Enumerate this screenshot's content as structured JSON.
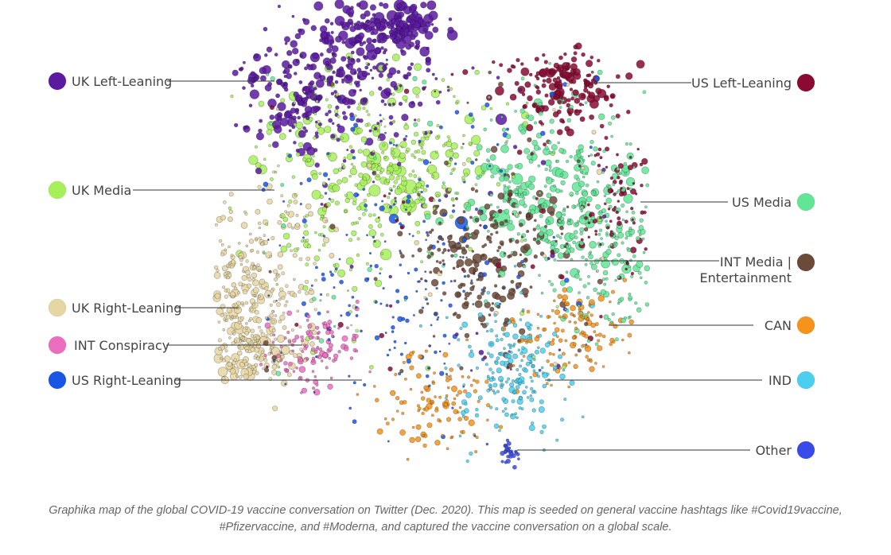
{
  "caption": {
    "line1": "Graphika map of the global COVID-19 vaccine conversation on Twitter (Dec. 2020). This map is seeded on general vaccine hashtags like #Covid19vaccine,",
    "line2": "#Pfizervaccine, and #Moderna, and captured the vaccine conversation on a global scale."
  },
  "clusters": [
    {
      "id": "uk-left-leaning",
      "label": "UK Left-Leaning",
      "color": "#5b1aa0",
      "side": "left"
    },
    {
      "id": "uk-media",
      "label": "UK Media",
      "color": "#a6f05a",
      "side": "left"
    },
    {
      "id": "uk-right-leaning",
      "label": "UK Right-Leaning",
      "color": "#e6d6a2",
      "side": "left"
    },
    {
      "id": "int-conspiracy",
      "label": "INT Conspiracy",
      "color": "#ec6ec0",
      "side": "left"
    },
    {
      "id": "us-right-leaning",
      "label": "US Right-Leaning",
      "color": "#1a56e6",
      "side": "left"
    },
    {
      "id": "us-left-leaning",
      "label": "US Left-Leaning",
      "color": "#8a0a32",
      "side": "right"
    },
    {
      "id": "us-media",
      "label": "US Media",
      "color": "#62e696",
      "side": "right"
    },
    {
      "id": "int-media",
      "label": "INT Media |",
      "label2": "Entertainment",
      "color": "#6b4a3a",
      "side": "right"
    },
    {
      "id": "can",
      "label": "CAN",
      "color": "#f5931a",
      "side": "right"
    },
    {
      "id": "ind",
      "label": "IND",
      "color": "#4ad0ee",
      "side": "right"
    },
    {
      "id": "other",
      "label": "Other",
      "color": "#3a4ae8",
      "side": "right"
    }
  ]
}
